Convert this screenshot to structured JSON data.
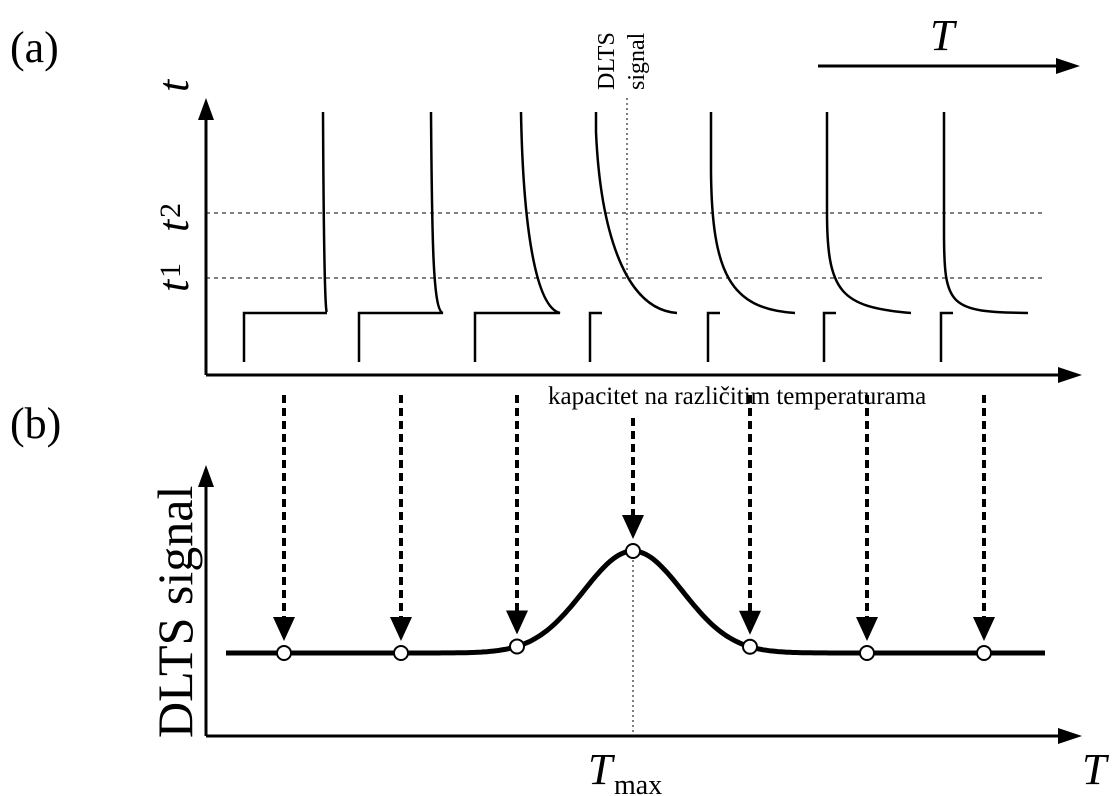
{
  "panel_a": {
    "label": "(a)",
    "y_axis_label": "t",
    "t1_label": "t",
    "t1_sub": "1",
    "t2_label": "t",
    "t2_sub": "2",
    "temperature_arrow_label": "T",
    "dlts_marker_line1": "DLTS",
    "dlts_marker_line2": "signal",
    "x_axis_caption": "kapacitet na različitim temperaturama",
    "transient_count": 7
  },
  "panel_b": {
    "label": "(b)",
    "y_axis_label": "DLTS signal",
    "x_axis_label": "T",
    "peak_label": "T",
    "peak_sub": "max"
  },
  "colors": {
    "ink": "#000000",
    "background": "#ffffff"
  }
}
